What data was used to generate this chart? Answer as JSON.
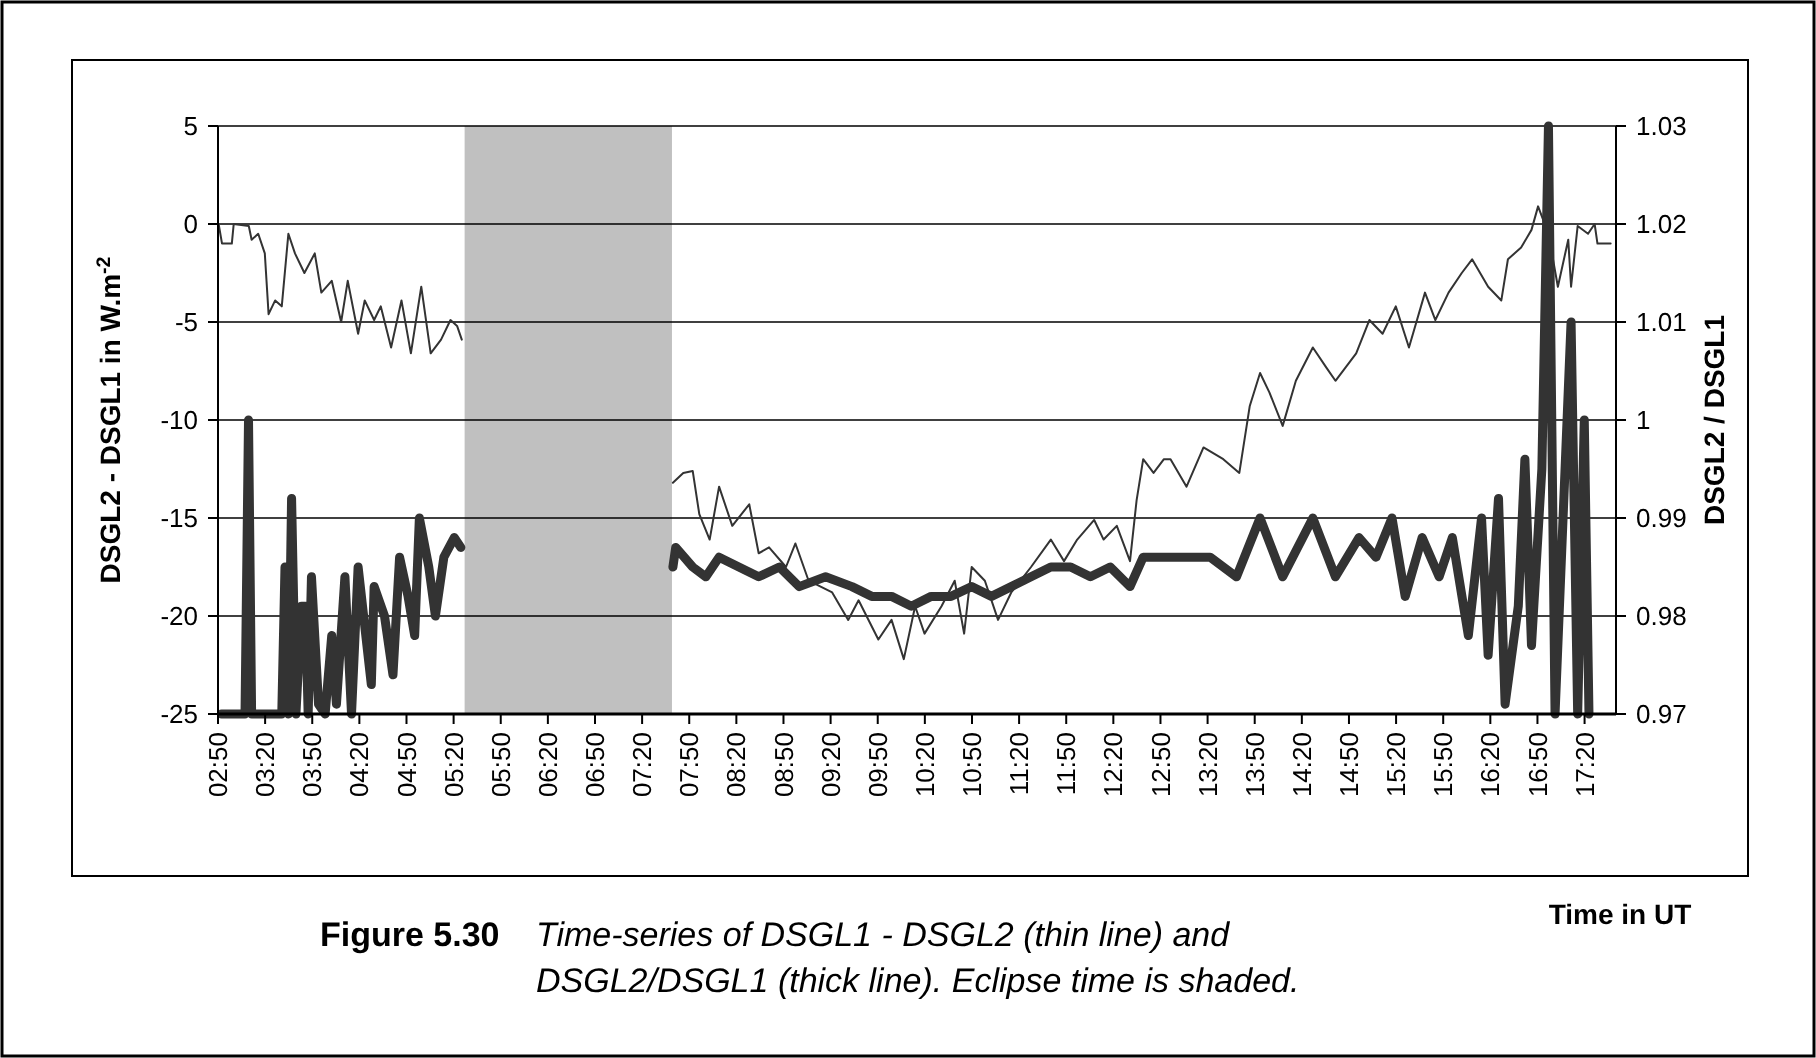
{
  "chart_data": {
    "type": "line",
    "xlabel": "Time in UT",
    "ylabel": "DSGL2 - DSGL1 in W.m$^{-2}$",
    "y2label": "DSGL2 / DSGL1",
    "annotations": [
      "Figure 5.30",
      "Time-series of DSGL1 - DSGL2 (thin line) and",
      "DSGL2/DSGL1 (thick line).  Eclipse time is shaded."
    ],
    "xlim": [
      2.8333,
      17.6667
    ],
    "xticks": [
      {
        "value": 2.8333,
        "label": "02:50"
      },
      {
        "value": 3.3333,
        "label": "03:20"
      },
      {
        "value": 3.8333,
        "label": "03:50"
      },
      {
        "value": 4.3333,
        "label": "04:20"
      },
      {
        "value": 4.8333,
        "label": "04:50"
      },
      {
        "value": 5.3333,
        "label": "05:20"
      },
      {
        "value": 5.8333,
        "label": "05:50"
      },
      {
        "value": 6.3333,
        "label": "06:20"
      },
      {
        "value": 6.8333,
        "label": "06:50"
      },
      {
        "value": 7.3333,
        "label": "07:20"
      },
      {
        "value": 7.8333,
        "label": "07:50"
      },
      {
        "value": 8.3333,
        "label": "08:20"
      },
      {
        "value": 8.8333,
        "label": "08:50"
      },
      {
        "value": 9.3333,
        "label": "09:20"
      },
      {
        "value": 9.8333,
        "label": "09:50"
      },
      {
        "value": 10.3333,
        "label": "10:20"
      },
      {
        "value": 10.8333,
        "label": "10:50"
      },
      {
        "value": 11.3333,
        "label": "11:20"
      },
      {
        "value": 11.8333,
        "label": "11:50"
      },
      {
        "value": 12.3333,
        "label": "12:20"
      },
      {
        "value": 12.8333,
        "label": "12:50"
      },
      {
        "value": 13.3333,
        "label": "13:20"
      },
      {
        "value": 13.8333,
        "label": "13:50"
      },
      {
        "value": 14.3333,
        "label": "14:20"
      },
      {
        "value": 14.8333,
        "label": "14:50"
      },
      {
        "value": 15.3333,
        "label": "15:20"
      },
      {
        "value": 15.8333,
        "label": "15:50"
      },
      {
        "value": 16.3333,
        "label": "16:20"
      },
      {
        "value": 16.8333,
        "label": "16:50"
      },
      {
        "value": 17.3333,
        "label": "17:20"
      }
    ],
    "ylim": [
      -25,
      5
    ],
    "yticks": [
      -25,
      -20,
      -15,
      -10,
      -5,
      0,
      5
    ],
    "y2lim": [
      0.97,
      1.03
    ],
    "y2ticks": [
      0.97,
      0.98,
      0.99,
      1,
      1.01,
      1.02,
      1.03
    ],
    "grid": "y",
    "marker": "none",
    "line_style": "solid",
    "bands": [
      {
        "axis": "x",
        "from": 5.45,
        "to": 7.65,
        "color": "#c0c0c0"
      }
    ],
    "series": [
      {
        "color": "#333333",
        "x": [
          2.84,
          2.876,
          2.98,
          3.0,
          3.16,
          3.19,
          3.26,
          3.33,
          3.37,
          3.44,
          3.51,
          3.58,
          3.65,
          3.75,
          3.86,
          3.93,
          4.04,
          4.14,
          4.21,
          4.32,
          4.39,
          4.49,
          4.56,
          4.67,
          4.78,
          4.88,
          4.99,
          5.09,
          5.2,
          5.3,
          5.37,
          5.42,
          6.5,
          7.66,
          7.77,
          7.87,
          7.94,
          8.05,
          8.15,
          8.29,
          8.47,
          8.57,
          8.68,
          8.86,
          8.96,
          9.1,
          9.35,
          9.52,
          9.63,
          9.84,
          9.98,
          10.11,
          10.23,
          10.33,
          10.51,
          10.65,
          10.75,
          10.83,
          10.97,
          11.11,
          11.25,
          11.46,
          11.67,
          11.81,
          11.95,
          12.13,
          12.23,
          12.37,
          12.51,
          12.58,
          12.65,
          12.76,
          12.87,
          12.94,
          13.11,
          13.29,
          13.5,
          13.67,
          13.78,
          13.89,
          13.99,
          14.13,
          14.27,
          14.45,
          14.59,
          14.69,
          14.91,
          15.05,
          15.19,
          15.33,
          15.47,
          15.64,
          15.75,
          15.89,
          16.03,
          16.14,
          16.31,
          16.45,
          16.52,
          16.66,
          16.77,
          16.84,
          16.95,
          17.05,
          17.16,
          17.19,
          17.26,
          17.37,
          17.44,
          17.47,
          17.61
        ],
        "values": [
          0,
          -1,
          -1,
          0,
          -0.1,
          -0.8,
          -0.5,
          -1.5,
          -4.6,
          -3.9,
          -4.2,
          -0.5,
          -1.5,
          -2.5,
          -1.5,
          -3.5,
          -2.9,
          -5,
          -2.9,
          -5.6,
          -3.9,
          -4.9,
          -4.2,
          -6.3,
          -3.9,
          -6.6,
          -3.2,
          -6.6,
          -5.9,
          -4.9,
          -5.2,
          -5.9,
          null,
          -13.2,
          -12.7,
          -12.6,
          -14.8,
          -16.1,
          -13.4,
          -15.4,
          -14.3,
          -16.8,
          -16.5,
          -17.5,
          -16.3,
          -18.2,
          -18.8,
          -20.2,
          -19.2,
          -21.2,
          -20.2,
          -22.2,
          -19.5,
          -20.9,
          -19.5,
          -18.2,
          -20.9,
          -17.5,
          -18.2,
          -20.2,
          -18.8,
          -17.5,
          -16.1,
          -17.2,
          -16.1,
          -15.1,
          -16.1,
          -15.4,
          -17.2,
          -14.1,
          -12,
          -12.7,
          -12,
          -12,
          -13.4,
          -11.4,
          -12,
          -12.7,
          -9.3,
          -7.6,
          -8.6,
          -10.3,
          -8,
          -6.3,
          -7.3,
          -8,
          -6.6,
          -4.9,
          -5.6,
          -4.2,
          -6.3,
          -3.5,
          -4.9,
          -3.5,
          -2.5,
          -1.8,
          -3.2,
          -3.9,
          -1.8,
          -1.2,
          -0.3,
          0.9,
          -0.5,
          -3.2,
          -0.8,
          -3.2,
          -0.1,
          -0.5,
          0,
          -1,
          -1
        ]
      },
      {
        "color": "#333333",
        "axis": "y2",
        "x": [
          2.87,
          3.12,
          3.157,
          3.19,
          3.51,
          3.544,
          3.58,
          3.614,
          3.66,
          3.72,
          3.76,
          3.79,
          3.825,
          3.9,
          3.97,
          4.04,
          4.09,
          4.18,
          4.25,
          4.32,
          4.46,
          4.49,
          4.6,
          4.69,
          4.76,
          4.85,
          4.92,
          4.97,
          5.07,
          5.14,
          5.23,
          5.34,
          5.41,
          6.5,
          7.66,
          7.69,
          7.87,
          8.01,
          8.15,
          8.36,
          8.57,
          8.79,
          9.0,
          9.28,
          9.56,
          9.77,
          9.98,
          10.19,
          10.4,
          10.61,
          10.83,
          11.04,
          11.25,
          11.46,
          11.67,
          11.88,
          12.09,
          12.3,
          12.51,
          12.65,
          12.87,
          12.94,
          13.15,
          13.36,
          13.64,
          13.89,
          14.13,
          14.45,
          14.69,
          14.94,
          15.12,
          15.29,
          15.43,
          15.61,
          15.79,
          15.93,
          16.1,
          16.24,
          16.31,
          16.42,
          16.49,
          16.63,
          16.7,
          16.77,
          16.88,
          16.95,
          17.02,
          17.19,
          17.26,
          17.33,
          17.38
        ],
        "values": [
          0.97,
          0.97,
          1.0,
          0.97,
          0.97,
          0.985,
          0.97,
          0.992,
          0.97,
          0.981,
          0.981,
          0.97,
          0.984,
          0.971,
          0.97,
          0.978,
          0.971,
          0.984,
          0.97,
          0.985,
          0.973,
          0.983,
          0.98,
          0.974,
          0.986,
          0.982,
          0.978,
          0.99,
          0.985,
          0.98,
          0.986,
          0.988,
          0.987,
          null,
          0.985,
          0.987,
          0.985,
          0.984,
          0.986,
          0.985,
          0.984,
          0.985,
          0.983,
          0.984,
          0.983,
          0.982,
          0.982,
          0.981,
          0.982,
          0.982,
          0.983,
          0.982,
          0.983,
          0.984,
          0.985,
          0.985,
          0.984,
          0.985,
          0.983,
          0.986,
          0.986,
          0.986,
          0.986,
          0.986,
          0.984,
          0.99,
          0.984,
          0.99,
          0.984,
          0.988,
          0.986,
          0.99,
          0.982,
          0.988,
          0.984,
          0.988,
          0.978,
          0.99,
          0.976,
          0.992,
          0.971,
          0.981,
          0.996,
          0.977,
          0.995,
          1.03,
          0.97,
          1.01,
          0.97,
          1.0,
          0.97
        ]
      }
    ]
  }
}
